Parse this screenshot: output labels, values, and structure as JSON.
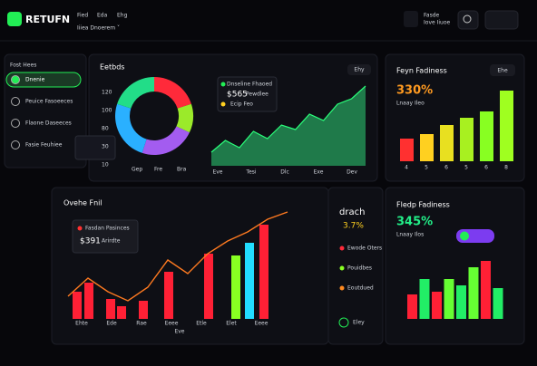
{
  "header": {
    "logo": "RETUFN",
    "nav": [
      "Fied",
      "Eda",
      "Ehg"
    ],
    "subnav": "Iiiea Dnoerem ˅",
    "user": [
      "Fasde",
      "Iove Iiuoe"
    ]
  },
  "sidebar": {
    "title": "Fost Hees",
    "items": [
      "Dnenie",
      "Peuice Fasoeeces",
      "Flaone Daseeces",
      "Fasie Feuhiee"
    ]
  },
  "overview": {
    "title": "Eetbds",
    "button": "Ehy",
    "axis_labels": [
      "120",
      "100",
      "80",
      "30",
      "10"
    ],
    "donut_labels": [
      "Gep",
      "Fre",
      "Bra"
    ],
    "donut": {
      "values": [
        20,
        12,
        23,
        25,
        20
      ],
      "colors": [
        "#ff2a3a",
        "#9bea2a",
        "#a35cf0",
        "#2ab0ff",
        "#22dd88"
      ]
    },
    "legend": [
      "Dnseline Fhaoed",
      "$565",
      "Pewdlee",
      "Ecip Feo"
    ],
    "area": {
      "values": [
        15,
        28,
        20,
        38,
        30,
        45,
        40,
        57,
        50,
        68,
        74,
        88
      ],
      "ylim": [
        0,
        90
      ],
      "color": "#1f7a4a",
      "labels": [
        "Eve",
        "Tesi",
        "Dlc",
        "Exe",
        "Dev"
      ]
    }
  },
  "growth": {
    "title": "Feyn Fadiness",
    "button": "Ehe",
    "value": "330%",
    "caption": "Lnaay Ileo",
    "ylim": [
      0,
      80
    ],
    "values": [
      25,
      30,
      40,
      48,
      55,
      78
    ],
    "colors": [
      "#ff3030",
      "#ffd020",
      "#e8e020",
      "#a8f020",
      "#88ff22",
      "#9fff20"
    ],
    "labels": [
      "4",
      "5",
      "6",
      "5",
      "6",
      "8"
    ]
  },
  "chart": {
    "title": "Ovehe Fnil",
    "tooltip": [
      "Fasdan Pasinces",
      "$391",
      "Arirdte"
    ],
    "ylim": [
      0,
      120
    ],
    "bars": [
      30,
      40,
      22,
      14,
      20,
      52,
      72,
      70,
      84,
      104
    ],
    "bar_colors": [
      "#ff2035",
      "#ff2035",
      "#ff2035",
      "#ff2035",
      "#ff2035",
      "#ff2035",
      "#ff2035",
      "#88ff22",
      "#22ddff",
      "#ff2035"
    ],
    "line": [
      25,
      45,
      30,
      20,
      35,
      65,
      50,
      72,
      86,
      96,
      110,
      118
    ],
    "labels": [
      "Ehte",
      "Ede",
      "Rae",
      "Eeee",
      "Etle",
      "Elet",
      "Eeee"
    ],
    "footer": "Eve"
  },
  "side": {
    "title": "drach",
    "value": "3.7%",
    "legend": [
      "Ewode Oters",
      "Pouidbes",
      "Eoutdued"
    ],
    "legend_colors": [
      "#ff2a3a",
      "#88ff22",
      "#ff8a20"
    ],
    "button": "Eley"
  },
  "readiness": {
    "title": "Fledp Fadiness",
    "value": "345%",
    "caption": "Lnaay Ilos",
    "ylim": [
      0,
      80
    ],
    "values": [
      27,
      44,
      30,
      44,
      37,
      57,
      64,
      34
    ],
    "colors": [
      "#ff2035",
      "#22ee66",
      "#ff2035",
      "#66ff33",
      "#22ee66",
      "#66ff33",
      "#ff2035",
      "#22ee66"
    ]
  }
}
